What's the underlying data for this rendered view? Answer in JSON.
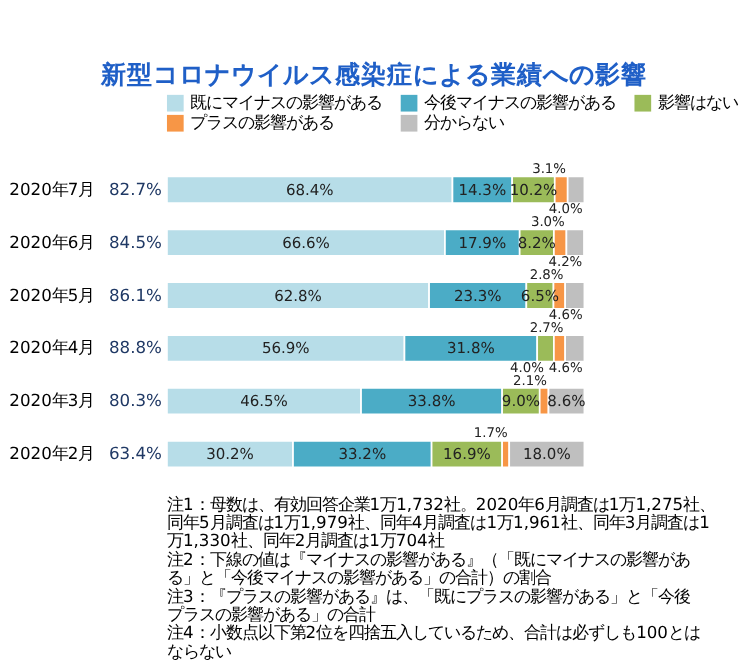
{
  "chart_data": {
    "type": "bar",
    "orientation": "horizontal",
    "stacked": true,
    "title": "新型コロナウイルス感染症による業績への影響",
    "categories": [
      "2020年7月",
      "2020年6月",
      "2020年5月",
      "2020年4月",
      "2020年3月",
      "2020年2月"
    ],
    "series": [
      {
        "name": "既にマイナスの影響がある",
        "color": "#b7dde8",
        "values": [
          68.4,
          66.6,
          62.8,
          56.9,
          46.5,
          30.2
        ],
        "value_labels": [
          "68.4%",
          "66.6%",
          "62.8%",
          "56.9%",
          "46.5%",
          "30.2%"
        ]
      },
      {
        "name": "今後マイナスの影響がある",
        "color": "#4bacc6",
        "values": [
          14.3,
          17.9,
          23.3,
          31.8,
          33.8,
          33.2
        ],
        "value_labels": [
          "14.3%",
          "17.9%",
          "23.3%",
          "31.8%",
          "33.8%",
          "33.2%"
        ]
      },
      {
        "name": "影響はない",
        "color": "#9bbb59",
        "values": [
          10.2,
          8.2,
          6.5,
          4.0,
          9.0,
          16.9
        ],
        "value_labels": [
          "10.2%",
          "8.2%",
          "6.5%",
          "4.0%",
          "9.0%",
          "16.9%"
        ]
      },
      {
        "name": "プラスの影響がある",
        "color": "#f79646",
        "values": [
          3.1,
          3.0,
          2.8,
          2.7,
          2.1,
          1.7
        ],
        "value_labels": [
          "3.1%",
          "3.0%",
          "2.8%",
          "2.7%",
          "2.1%",
          "1.7%"
        ]
      },
      {
        "name": "分からない",
        "color": "#bfbfbf",
        "values": [
          4.0,
          4.2,
          4.6,
          4.6,
          8.6,
          18.0
        ],
        "value_labels": [
          "4.0%",
          "4.2%",
          "4.6%",
          "4.6%",
          "8.6%",
          "18.0%"
        ]
      }
    ],
    "tick_labels": "y",
    "legend": "top",
    "annotations": [
      "82.7%",
      "84.5%",
      "86.1%",
      "88.8%",
      "80.3%",
      "63.4%",
      "注1：母数は、有効回答企業1万1,732社。2020年6月調査は1万1,275社、同年5月調査は1万1,979社、同年4月調査は1万1,961社、同年3月調査は1万1,330社、同年2月調査は1万704社",
      "注2：下線の値は『マイナスの影響がある』（「既にマイナスの影響がある」と「今後マイナスの影響がある」の合計）の割合",
      "注3：『プラスの影響がある』は、「既にプラスの影響がある」と「今後プラスの影響がある」の合計",
      "注4：小数点以下第2位を四捨五入しているため、合計は必ずしも100とはならない"
    ]
  }
}
